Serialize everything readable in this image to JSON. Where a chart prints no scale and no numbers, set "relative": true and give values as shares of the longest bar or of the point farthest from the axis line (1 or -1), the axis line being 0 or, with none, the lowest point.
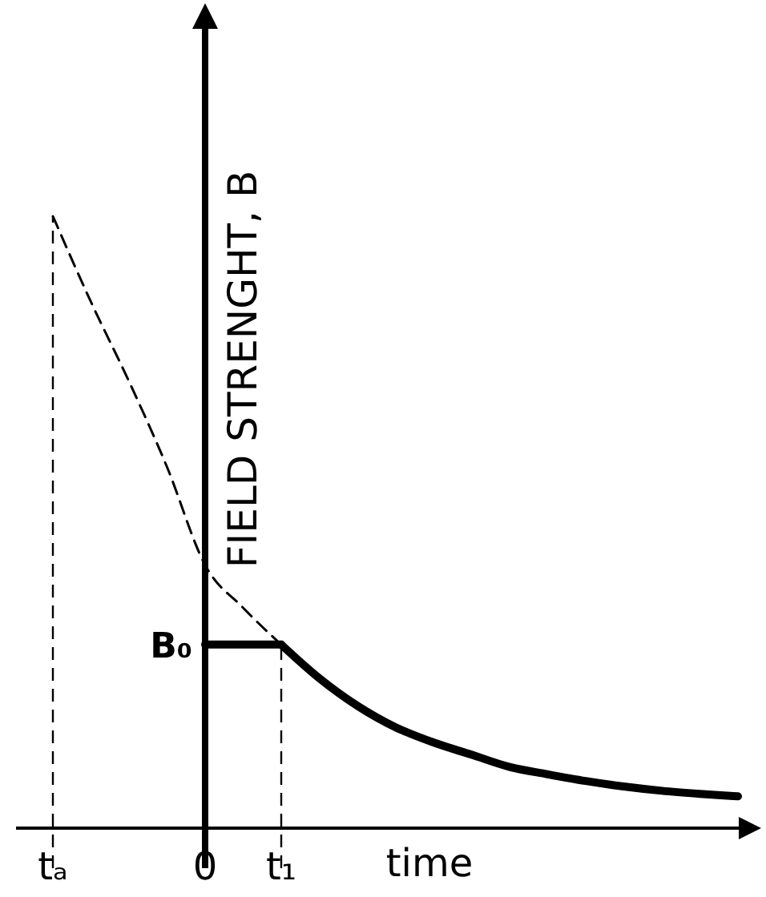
{
  "chart_data": {
    "type": "line",
    "relative": true,
    "xlabel": "time",
    "ylabel": "FIELD STRENGHT, B",
    "categories": [
      "tₐ",
      null,
      null,
      null,
      "0",
      null,
      "t₁",
      null,
      null,
      null,
      null,
      null,
      null,
      null,
      null,
      null,
      null,
      null,
      null
    ],
    "series": [
      {
        "color": "#000000",
        "line_style": "solid",
        "values": [
          null,
          null,
          null,
          null,
          0.3,
          0.3,
          0.3,
          null,
          null,
          null,
          null,
          null,
          null,
          null,
          null,
          null,
          null,
          null,
          null
        ]
      },
      {
        "color": "#000000",
        "line_style": "solid",
        "values": [
          null,
          null,
          null,
          null,
          null,
          null,
          0.3,
          0.245,
          0.2,
          0.165,
          0.14,
          0.12,
          0.1,
          0.088,
          0.077,
          0.068,
          0.061,
          0.056,
          0.052
        ]
      },
      {
        "color": "#000000",
        "line_style": "dashed",
        "values": [
          1,
          0.86,
          0.73,
          0.59,
          0.43,
          0.36,
          0.3,
          null,
          null,
          null,
          null,
          null,
          null,
          null,
          null,
          null,
          null,
          null,
          null
        ]
      }
    ],
    "ref_lines": [
      {
        "axis": "x",
        "value": "tₐ",
        "line_style": "dashed"
      },
      {
        "axis": "x",
        "value": "t₁",
        "line_style": "dashed"
      }
    ],
    "annotations": [
      {
        "text": "B₀",
        "x": "0",
        "y": 0.3
      }
    ]
  }
}
